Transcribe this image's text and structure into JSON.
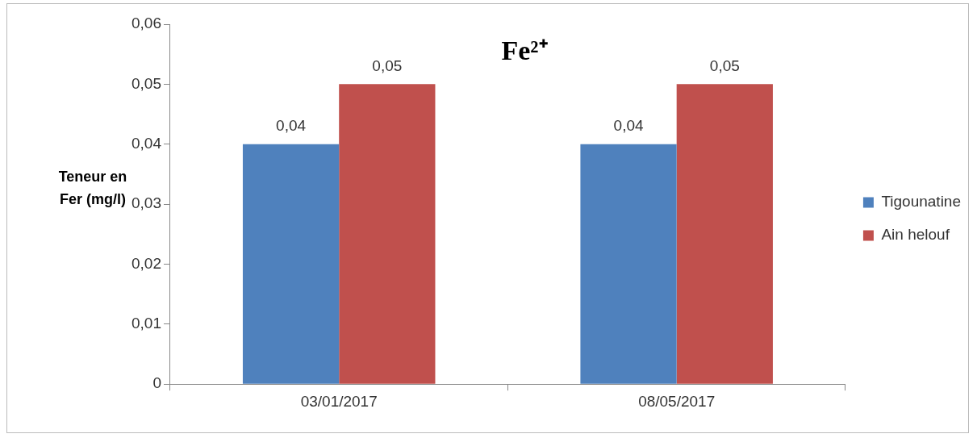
{
  "chart_data": {
    "type": "bar",
    "title": "Fe²⁺",
    "ylabel": "Teneur en Fer (mg/l)",
    "categories": [
      "03/01/2017",
      "08/05/2017"
    ],
    "series": [
      {
        "name": "Tigounatine",
        "color": "#4f81bd",
        "values": [
          0.04,
          0.04
        ],
        "value_labels": [
          "0,04",
          "0,04"
        ]
      },
      {
        "name": "Ain helouf",
        "color": "#c0504d",
        "values": [
          0.05,
          0.05
        ],
        "value_labels": [
          "0,05",
          "0,05"
        ]
      }
    ],
    "ylim": [
      0,
      0.06
    ],
    "yticks": [
      0,
      {
        "value": 0.01,
        "label": "0,01"
      },
      {
        "value": 0.02,
        "label": "0,02"
      },
      {
        "value": 0.03,
        "label": "0,03"
      },
      {
        "value": 0.04,
        "label": "0,04"
      },
      {
        "value": 0.05,
        "label": "0,05"
      },
      {
        "value": 0.06,
        "label": "0,06"
      }
    ],
    "grid": false,
    "legend": "right"
  }
}
